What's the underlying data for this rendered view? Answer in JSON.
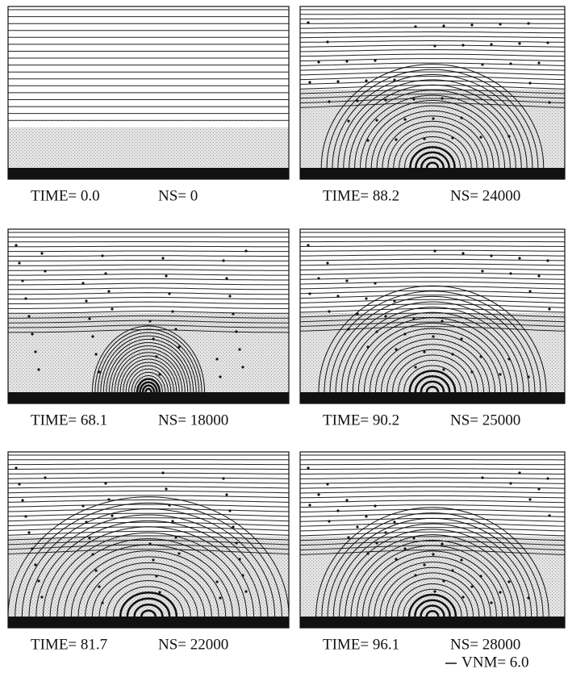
{
  "panels": [
    {
      "time": "TIME= 0.0",
      "ns": "NS= 0"
    },
    {
      "time": "TIME= 88.2",
      "ns": "NS= 24000"
    },
    {
      "time": "TIME= 68.1",
      "ns": "NS= 18000"
    },
    {
      "time": "TIME= 90.2",
      "ns": "NS= 25000"
    },
    {
      "time": "TIME= 81.7",
      "ns": "NS= 22000"
    },
    {
      "time": "TIME= 96.1",
      "ns": "NS= 28000"
    }
  ],
  "scale_label": "VNM= 6.0"
}
